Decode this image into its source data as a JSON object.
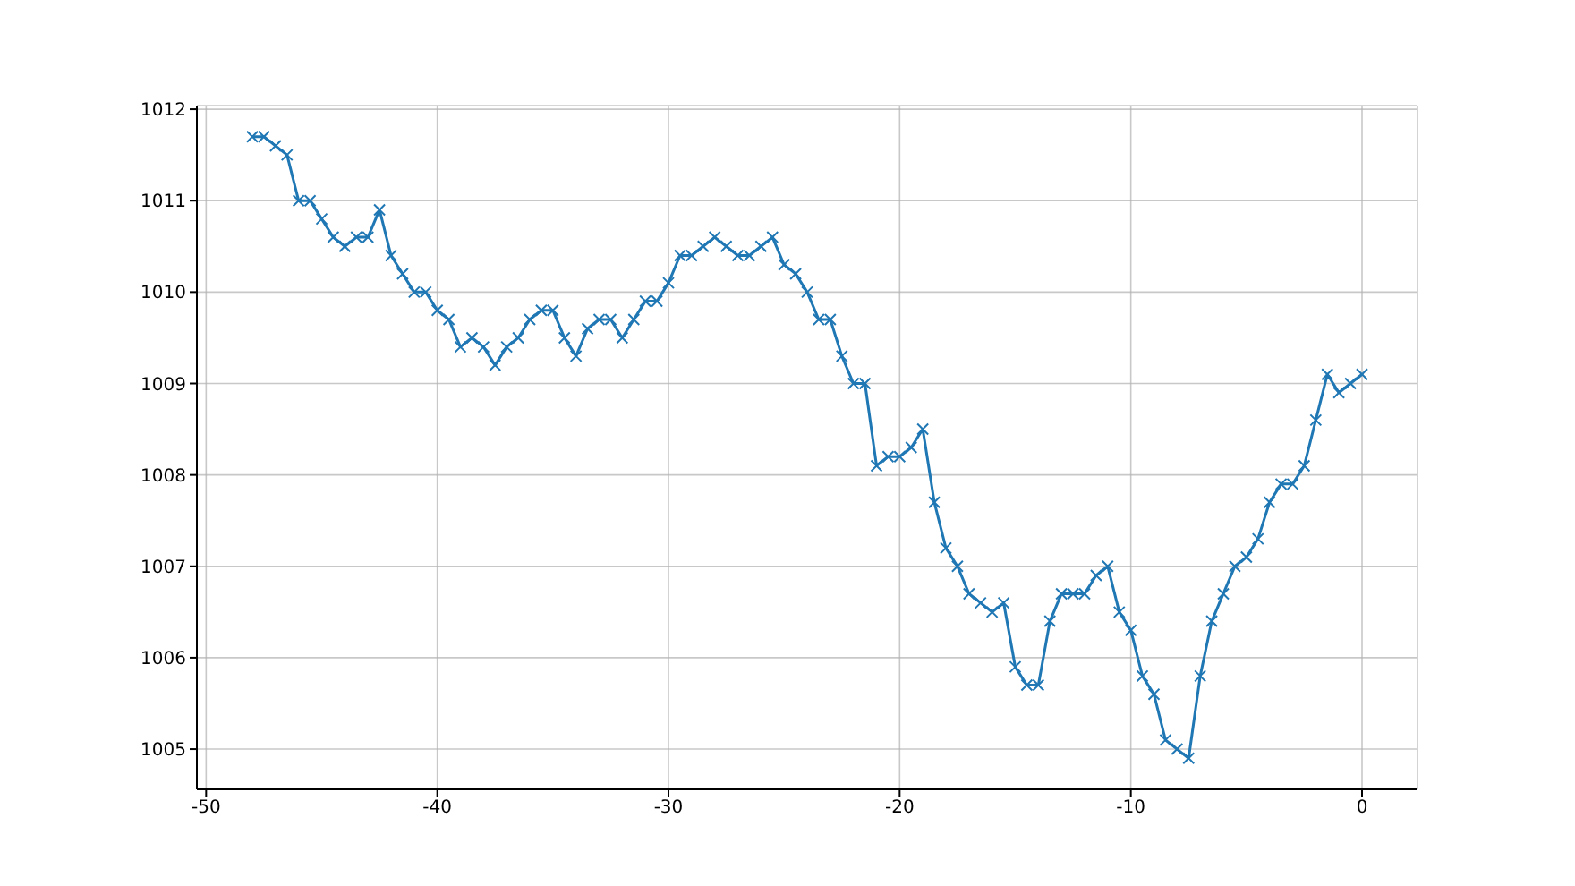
{
  "chart_data": {
    "type": "line",
    "x": [
      -48,
      -47.5,
      -47,
      -46.5,
      -46,
      -45.5,
      -45,
      -44.5,
      -44,
      -43.5,
      -43,
      -42.5,
      -42,
      -41.5,
      -41,
      -40.5,
      -40,
      -39.5,
      -39,
      -38.5,
      -38,
      -37.5,
      -37,
      -36.5,
      -36,
      -35.5,
      -35,
      -34.5,
      -34,
      -33.5,
      -33,
      -32.5,
      -32,
      -31.5,
      -31,
      -30.5,
      -30,
      -29.5,
      -29,
      -28.5,
      -28,
      -27.5,
      -27,
      -26.5,
      -26,
      -25.5,
      -25,
      -24.5,
      -24,
      -23.5,
      -23,
      -22.5,
      -22,
      -21.5,
      -21,
      -20.5,
      -20,
      -19.5,
      -19,
      -18.5,
      -18,
      -17.5,
      -17,
      -16.5,
      -16,
      -15.5,
      -15,
      -14.5,
      -14,
      -13.5,
      -13,
      -12.5,
      -12,
      -11.5,
      -11,
      -10.5,
      -10,
      -9.5,
      -9,
      -8.5,
      -8,
      -7.5,
      -7,
      -6.5,
      -6,
      -5.5,
      -5,
      -4.5,
      -4,
      -3.5,
      -3,
      -2.5,
      -2,
      -1.5,
      -1,
      -0.5,
      0
    ],
    "series": [
      {
        "color": "#1f77b4",
        "values": [
          1011.7,
          1011.7,
          1011.6,
          1011.5,
          1011.0,
          1011.0,
          1010.8,
          1010.6,
          1010.5,
          1010.6,
          1010.6,
          1010.9,
          1010.4,
          1010.2,
          1010.0,
          1010.0,
          1009.8,
          1009.7,
          1009.4,
          1009.5,
          1009.4,
          1009.2,
          1009.4,
          1009.5,
          1009.7,
          1009.8,
          1009.8,
          1009.5,
          1009.3,
          1009.6,
          1009.7,
          1009.7,
          1009.5,
          1009.7,
          1009.9,
          1009.9,
          1010.1,
          1010.4,
          1010.4,
          1010.5,
          1010.6,
          1010.5,
          1010.4,
          1010.4,
          1010.5,
          1010.6,
          1010.3,
          1010.2,
          1010.0,
          1009.7,
          1009.7,
          1009.3,
          1009.0,
          1009.0,
          1008.1,
          1008.2,
          1008.2,
          1008.3,
          1008.5,
          1007.7,
          1007.2,
          1007.0,
          1006.7,
          1006.6,
          1006.5,
          1006.6,
          1005.9,
          1005.7,
          1005.7,
          1006.4,
          1006.7,
          1006.7,
          1006.7,
          1006.9,
          1007.0,
          1006.5,
          1006.3,
          1005.8,
          1005.6,
          1005.1,
          1005.0,
          1004.9,
          1005.8,
          1006.4,
          1006.7,
          1007.0,
          1007.1,
          1007.3,
          1007.7,
          1007.9,
          1007.9,
          1008.1,
          1008.6,
          1009.1,
          1008.9,
          1009.0,
          1009.1
        ]
      }
    ],
    "xlim": [
      -50.4,
      2.4
    ],
    "xticks": [
      -50,
      -40,
      -30,
      -20,
      -10,
      0
    ],
    "ylim": [
      1004.56,
      1012.04
    ],
    "yticks": [
      1005,
      1006,
      1007,
      1008,
      1009,
      1010,
      1011,
      1012
    ],
    "grid": true,
    "marker": "cross",
    "line_style": "solid"
  }
}
